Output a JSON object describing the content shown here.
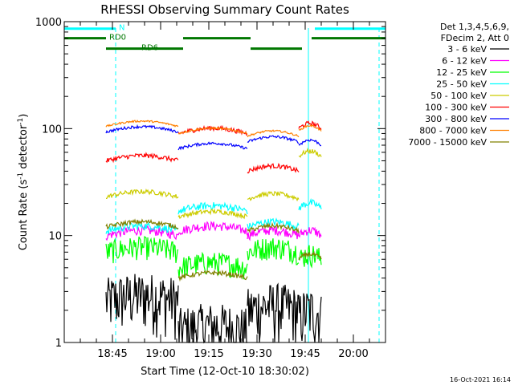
{
  "chart_data": {
    "type": "line",
    "title": "RHESSI Observing Summary Count Rates",
    "xlabel": "Start Time (12-Oct-10 18:30:02)",
    "ylabel_main": "Count Rate (s",
    "ylabel_sup1": "-1",
    "ylabel_mid": " detector",
    "ylabel_sup2": "-1",
    "ylabel_end": ")",
    "y_scale": "log",
    "ylim": [
      1,
      1000
    ],
    "xlim_minutes": [
      0,
      100
    ],
    "y_ticks": [
      {
        "v": 1,
        "label": "1"
      },
      {
        "v": 10,
        "label": "10"
      },
      {
        "v": 100,
        "label": "100"
      },
      {
        "v": 1000,
        "label": "1000"
      }
    ],
    "x_ticks": [
      {
        "m": 15,
        "label": "18:45"
      },
      {
        "m": 30,
        "label": "19:00"
      },
      {
        "m": 45,
        "label": "19:15"
      },
      {
        "m": 60,
        "label": "19:30"
      },
      {
        "m": 75,
        "label": "19:45"
      },
      {
        "m": 90,
        "label": "20:00"
      }
    ],
    "legend": {
      "placement": "right",
      "header": [
        "Det 1,3,4,5,6,9,",
        "FDecim 2, Att 0"
      ],
      "entries": [
        {
          "label": "3 - 6 keV",
          "color": "#000000"
        },
        {
          "label": "6 - 12 keV",
          "color": "#ff00ff"
        },
        {
          "label": "12 - 25 keV",
          "color": "#00ff00"
        },
        {
          "label": "25 - 50 keV",
          "color": "#00ffff"
        },
        {
          "label": "50 - 100 keV",
          "color": "#cccc00"
        },
        {
          "label": "100 - 300 keV",
          "color": "#ff0000"
        },
        {
          "label": "300 - 800 keV",
          "color": "#0000ff"
        },
        {
          "label": "800 - 7000 keV",
          "color": "#ff8000"
        },
        {
          "label": "7000 - 15000 keV",
          "color": "#808000"
        }
      ]
    },
    "segments_minutes": [
      [
        13,
        35.5
      ],
      [
        35.5,
        57
      ],
      [
        57,
        73
      ],
      [
        73,
        80
      ]
    ],
    "series": [
      {
        "name": "3 - 6 keV",
        "color": "#000000",
        "levels": [
          2.5,
          1.3,
          2.0,
          1.8
        ],
        "noise": 0.6
      },
      {
        "name": "6 - 12 keV",
        "color": "#ff00ff",
        "levels": [
          10,
          11,
          10,
          10
        ],
        "noise": 0.1
      },
      {
        "name": "12 - 25 keV",
        "color": "#00ff00",
        "levels": [
          7,
          5,
          7,
          6
        ],
        "noise": 0.25
      },
      {
        "name": "25 - 50 keV",
        "color": "#00ffff",
        "levels": [
          11,
          17,
          12,
          18
        ],
        "noise": 0.08
      },
      {
        "name": "50 - 100 keV",
        "color": "#cccc00",
        "levels": [
          23,
          15,
          22,
          55
        ],
        "noise": 0.05
      },
      {
        "name": "100 - 300 keV",
        "color": "#ff0000",
        "levels": [
          50,
          90,
          40,
          100
        ],
        "noise": 0.05
      },
      {
        "name": "300 - 800 keV",
        "color": "#0000ff",
        "levels": [
          93,
          65,
          75,
          70
        ],
        "noise": 0.03
      },
      {
        "name": "800 - 7000 keV",
        "color": "#ff8000",
        "levels": [
          105,
          90,
          85,
          95
        ],
        "noise": 0.02
      },
      {
        "name": "7000 - 15000 keV",
        "color": "#808000",
        "levels": [
          12,
          4,
          11,
          6
        ],
        "noise": 0.05
      }
    ],
    "flag_bars": [
      {
        "label": "N",
        "color": "#00ffff",
        "level": 860,
        "ranges": [
          [
            0,
            16
          ],
          [
            78,
            100
          ]
        ]
      },
      {
        "label": "RD0",
        "color": "#007700",
        "level": 700,
        "ranges": [
          [
            0,
            13
          ],
          [
            37,
            58
          ],
          [
            77,
            100
          ]
        ]
      },
      {
        "label": "RD6",
        "color": "#007700",
        "level": 560,
        "ranges": [
          [
            13,
            37
          ],
          [
            58,
            74
          ]
        ]
      }
    ],
    "vlines_minutes": [
      {
        "m": 0,
        "style": "solid"
      },
      {
        "m": 100,
        "style": "solid"
      },
      {
        "m": 76,
        "style": "solid"
      },
      {
        "m": 16,
        "style": "dashed"
      },
      {
        "m": 98,
        "style": "dashed"
      }
    ]
  },
  "footer_timestamp": "16-Oct-2021 16:14"
}
